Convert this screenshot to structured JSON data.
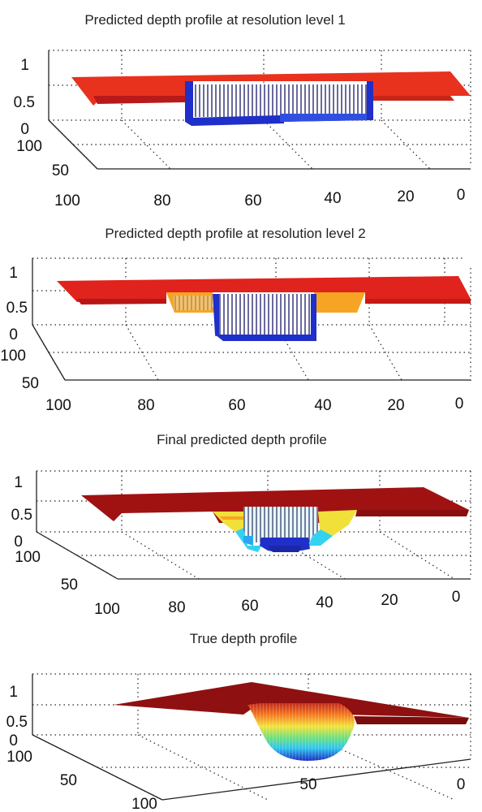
{
  "chart_data": [
    {
      "type": "surface",
      "title": "Predicted depth profile at resolution level 1",
      "x_ticks": [
        "100",
        "80",
        "60",
        "40",
        "20",
        "0"
      ],
      "y_ticks": [
        "100",
        "50"
      ],
      "z_ticks": [
        "1",
        "0.5",
        "0"
      ],
      "xlim": [
        0,
        100
      ],
      "ylim": [
        0,
        100
      ],
      "zlim": [
        0,
        1
      ],
      "surface": [
        {
          "region": "plateau",
          "depth": 1.0,
          "color": "#e8321e"
        },
        {
          "region": "step",
          "x_range": [
            23,
            76
          ],
          "depth": 0.6,
          "color": "#b81a1a"
        },
        {
          "region": "pit",
          "x_range": [
            29,
            70
          ],
          "depth": 0.15,
          "color": "#1f2fc9"
        }
      ]
    },
    {
      "type": "surface",
      "title": "Predicted depth profile at resolution level 2",
      "x_ticks": [
        "100",
        "80",
        "60",
        "40",
        "20",
        "0"
      ],
      "y_ticks": [
        "100",
        "50"
      ],
      "z_ticks": [
        "1",
        "0.5",
        "0"
      ],
      "xlim": [
        0,
        100
      ],
      "ylim": [
        0,
        100
      ],
      "zlim": [
        0,
        1
      ],
      "surface": [
        {
          "region": "plateau",
          "depth": 1.0,
          "color": "#e0231c"
        },
        {
          "region": "step",
          "x_range": [
            29,
            73
          ],
          "depth": 0.6,
          "color": "#f7a424"
        },
        {
          "region": "pit",
          "x_range": [
            39,
            60
          ],
          "depth": 0.15,
          "color": "#1f2fc9"
        }
      ]
    },
    {
      "type": "surface",
      "title": "Final predicted depth profile",
      "x_ticks": [
        "100",
        "80",
        "60",
        "40",
        "20",
        "0"
      ],
      "y_ticks": [
        "100",
        "50"
      ],
      "z_ticks": [
        "1",
        "0.5",
        "0"
      ],
      "xlim": [
        0,
        100
      ],
      "ylim": [
        0,
        100
      ],
      "zlim": [
        0,
        1
      ],
      "surface": [
        {
          "region": "plateau",
          "depth": 1.0,
          "color": "#a01212"
        },
        {
          "region": "rim",
          "x_range": [
            34,
            62
          ],
          "depth": 0.65,
          "color": "#f2e03a"
        },
        {
          "region": "slope",
          "x_range": [
            38,
            58
          ],
          "depth": 0.4,
          "color": "#34d2f0"
        },
        {
          "region": "pit",
          "x_range": [
            43,
            53
          ],
          "depth": 0.1,
          "color": "#1f2fc9"
        }
      ]
    },
    {
      "type": "surface",
      "title": "True depth profile",
      "x_ticks": [
        "100",
        "50",
        "0"
      ],
      "y_ticks": [
        "100",
        "50"
      ],
      "z_ticks": [
        "1",
        "0.5",
        "0"
      ],
      "xlim": [
        0,
        100
      ],
      "ylim": [
        0,
        100
      ],
      "zlim": [
        0,
        1
      ],
      "surface": [
        {
          "region": "plateau",
          "depth": 1.0,
          "color": "#8f1010"
        },
        {
          "region": "bowl",
          "x_range": [
            35,
            65
          ],
          "depth": 0.15,
          "color": "#1f2fc9"
        }
      ]
    }
  ]
}
